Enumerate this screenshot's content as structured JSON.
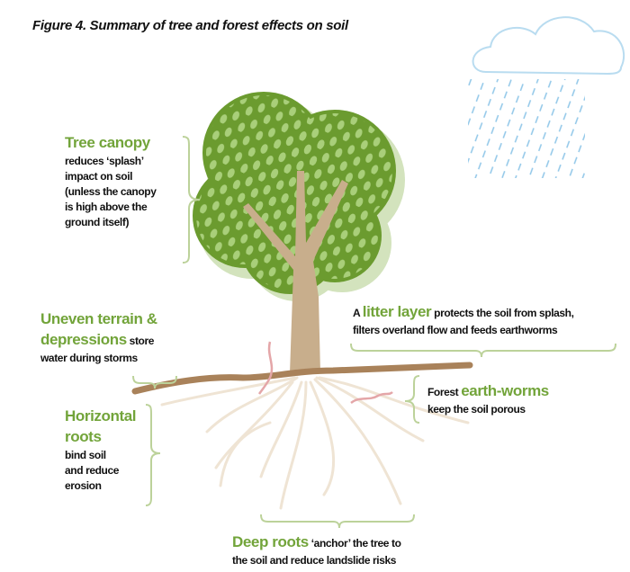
{
  "title": "Figure 4. Summary of tree and forest effects on soil",
  "labels": [
    {
      "lines": [
        [
          {
            "text": "Tree canopy",
            "style": "term"
          }
        ],
        [
          {
            "text": "reduces ‘splash’",
            "style": "body"
          }
        ],
        [
          {
            "text": "impact on soil",
            "style": "body"
          }
        ],
        [
          {
            "text": "(unless the canopy",
            "style": "body"
          }
        ],
        [
          {
            "text": "is high above the",
            "style": "body"
          }
        ],
        [
          {
            "text": "ground itself)",
            "style": "body"
          }
        ]
      ]
    },
    {
      "lines": [
        [
          {
            "text": "Uneven terrain &",
            "style": "term"
          }
        ],
        [
          {
            "text": "depressions",
            "style": "term"
          },
          {
            "text": " store",
            "style": "body"
          }
        ],
        [
          {
            "text": "water during storms",
            "style": "body"
          }
        ]
      ]
    },
    {
      "lines": [
        [
          {
            "text": "A ",
            "style": "body"
          },
          {
            "text": "litter layer",
            "style": "term"
          },
          {
            "text": " protects the soil from splash,",
            "style": "body"
          }
        ],
        [
          {
            "text": "filters overland flow and feeds earthworms",
            "style": "body"
          }
        ]
      ]
    },
    {
      "lines": [
        [
          {
            "text": "Horizontal",
            "style": "term"
          }
        ],
        [
          {
            "text": "roots",
            "style": "term"
          }
        ],
        [
          {
            "text": "bind soil",
            "style": "body"
          }
        ],
        [
          {
            "text": "and reduce",
            "style": "body"
          }
        ],
        [
          {
            "text": "erosion",
            "style": "body"
          }
        ]
      ]
    },
    {
      "lines": [
        [
          {
            "text": "Forest ",
            "style": "body"
          },
          {
            "text": "earth-worms",
            "style": "term"
          }
        ],
        [
          {
            "text": "keep the soil porous",
            "style": "body"
          }
        ]
      ]
    },
    {
      "lines": [
        [
          {
            "text": "Deep roots",
            "style": "term"
          },
          {
            "text": " ‘anchor’ the tree to",
            "style": "body"
          }
        ],
        [
          {
            "text": "the soil and reduce landslide risks",
            "style": "body"
          }
        ]
      ]
    }
  ]
}
